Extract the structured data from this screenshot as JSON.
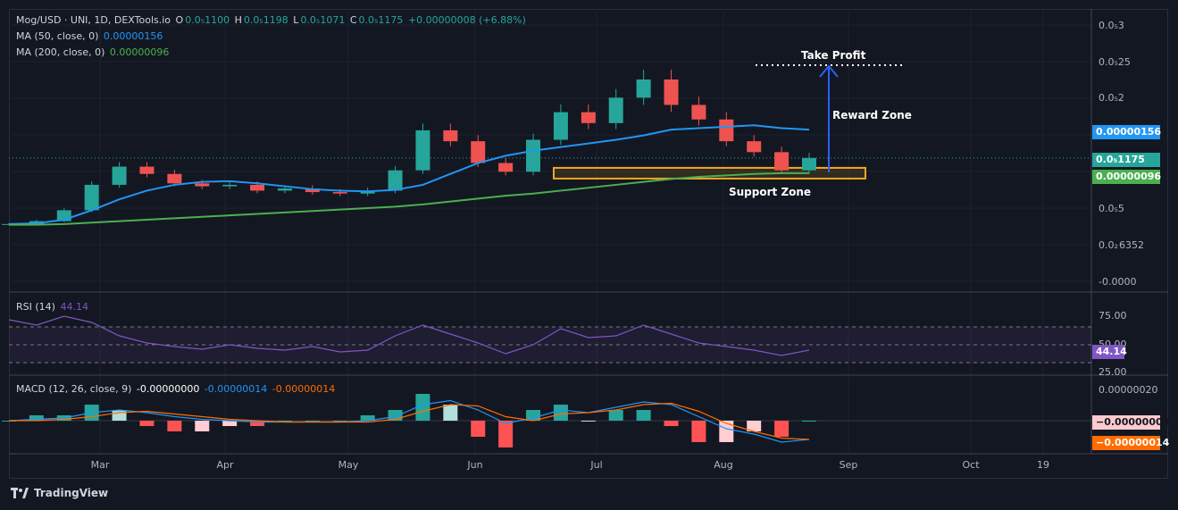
{
  "header": {
    "symbol": "Mog/USD · UNI, 1D, DEXTools.io",
    "o_label": "O",
    "o_val": "0.0₅1100",
    "h_label": "H",
    "h_val": "0.0₅1198",
    "l_label": "L",
    "l_val": "0.0₅1071",
    "c_label": "C",
    "c_val": "0.0₅1175",
    "change": "+0.00000008 (+6.88%)"
  },
  "ma50": {
    "label": "MA (50, close, 0)",
    "value": "0.00000156",
    "color": "#2196f3"
  },
  "ma200": {
    "label": "MA (200, close, 0)",
    "value": "0.00000096",
    "color": "#4caf50"
  },
  "price_axis": [
    "0.0₅3",
    "0.0₅25",
    "0.0₅2",
    "0.0₅5",
    "0.0₂ 6352",
    "-0.0000"
  ],
  "price_tags": {
    "ma50": "0.00000156",
    "close": "0.0₅1175",
    "ma200": "0.00000096"
  },
  "annotations": {
    "take_profit": "Take Profit",
    "reward_zone": "Reward Zone",
    "support_zone": "Support Zone"
  },
  "rsi": {
    "label": "RSI (14)",
    "value": "44.14",
    "axis": [
      "75.00",
      "50.00",
      "25.00"
    ],
    "color": "#7e57c2"
  },
  "macd": {
    "label": "MACD (12, 26, close, 9)",
    "hist_val": "-0.00000000",
    "macd_val": "-0.00000014",
    "signal_val": "-0.00000014",
    "axis_top": "0.00000020",
    "tag1": "−0.00000000",
    "tag2": "−0.00000014"
  },
  "x_axis": [
    {
      "label": "Mar"
    },
    {
      "label": "Apr"
    },
    {
      "label": "May"
    },
    {
      "label": "Jun"
    },
    {
      "label": "Jul"
    },
    {
      "label": "Aug"
    },
    {
      "label": "Sep"
    },
    {
      "label": "Oct"
    },
    {
      "label": "19"
    }
  ],
  "footer": {
    "brand": "TradingView"
  },
  "chart_data": {
    "type": "line",
    "title": "Mog/USD · UNI, 1D, DEXTools.io",
    "series": [
      {
        "name": "MA (50, close, 0)",
        "color": "#2196f3",
        "values": [
          0.26,
          0.27,
          0.32,
          0.45,
          0.6,
          0.72,
          0.8,
          0.84,
          0.85,
          0.82,
          0.78,
          0.74,
          0.72,
          0.71,
          0.73,
          0.8,
          0.95,
          1.1,
          1.2,
          1.27,
          1.32,
          1.37,
          1.42,
          1.48,
          1.56,
          1.58,
          1.6,
          1.62,
          1.58,
          1.56
        ]
      },
      {
        "name": "MA (200, close, 0)",
        "color": "#4caf50",
        "values": [
          0.25,
          0.25,
          0.26,
          0.28,
          0.3,
          0.32,
          0.34,
          0.36,
          0.38,
          0.4,
          0.42,
          0.44,
          0.46,
          0.48,
          0.5,
          0.53,
          0.57,
          0.61,
          0.65,
          0.68,
          0.72,
          0.76,
          0.8,
          0.84,
          0.88,
          0.91,
          0.93,
          0.95,
          0.96,
          0.96
        ]
      }
    ],
    "close_values": [
      0.26,
      0.3,
      0.45,
      0.8,
      1.05,
      0.95,
      0.82,
      0.78,
      0.8,
      0.72,
      0.75,
      0.7,
      0.68,
      0.72,
      1.0,
      1.55,
      1.4,
      1.1,
      0.98,
      1.42,
      1.8,
      1.65,
      2.0,
      2.25,
      1.9,
      1.7,
      1.4,
      1.25,
      1.0,
      1.17
    ],
    "rsi_values": [
      78,
      72,
      82,
      75,
      60,
      52,
      48,
      45,
      50,
      46,
      44,
      48,
      42,
      44,
      60,
      72,
      62,
      52,
      40,
      50,
      68,
      58,
      60,
      72,
      62,
      52,
      48,
      44,
      38,
      44
    ],
    "macd_values": [
      0.0,
      0.01,
      0.02,
      0.06,
      0.08,
      0.06,
      0.03,
      0.01,
      0.0,
      -0.01,
      -0.01,
      -0.01,
      -0.01,
      0.0,
      0.03,
      0.12,
      0.15,
      0.08,
      -0.02,
      0.02,
      0.08,
      0.06,
      0.1,
      0.14,
      0.12,
      0.03,
      -0.06,
      -0.1,
      -0.16,
      -0.14
    ],
    "signal_values": [
      0.0,
      0.0,
      0.01,
      0.03,
      0.06,
      0.07,
      0.05,
      0.03,
      0.01,
      0.0,
      -0.01,
      -0.01,
      -0.01,
      -0.01,
      0.01,
      0.07,
      0.12,
      0.11,
      0.03,
      0.0,
      0.05,
      0.06,
      0.08,
      0.12,
      0.13,
      0.07,
      -0.02,
      -0.08,
      -0.13,
      -0.14
    ],
    "ylim": [
      0,
      3
    ],
    "grid": true
  }
}
